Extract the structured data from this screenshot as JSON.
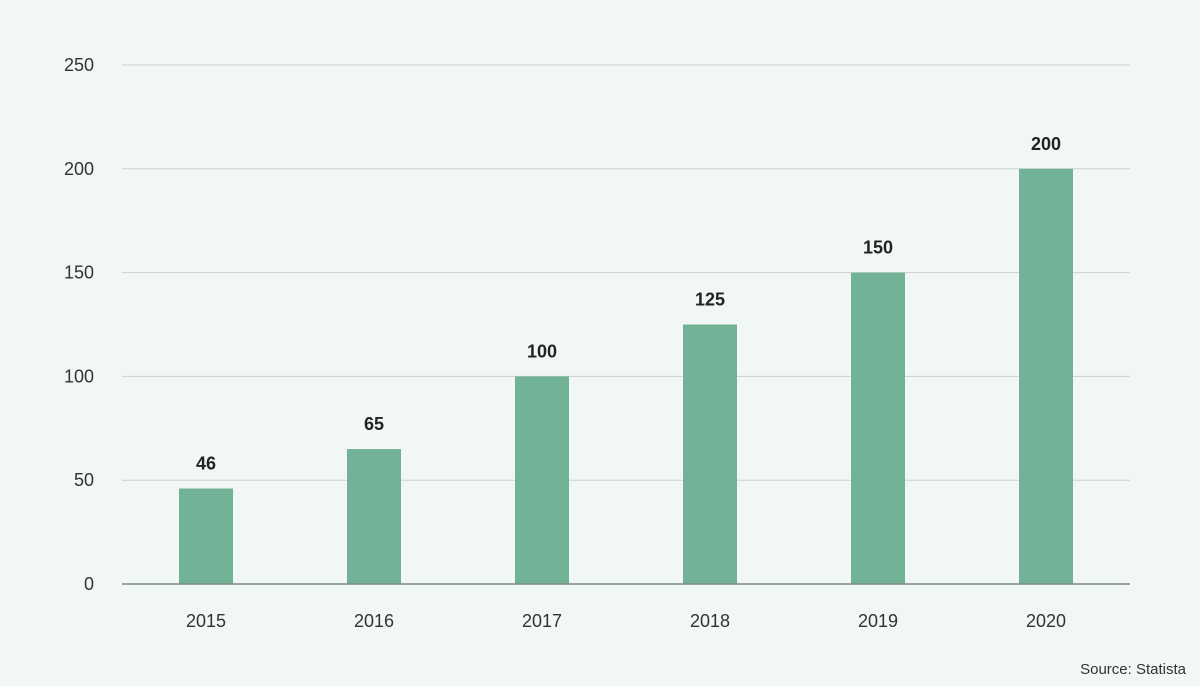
{
  "chart_data": {
    "type": "bar",
    "title": "",
    "xlabel": "",
    "ylabel": "",
    "categories": [
      "2015",
      "2016",
      "2017",
      "2018",
      "2019",
      "2020"
    ],
    "values": [
      46,
      65,
      100,
      125,
      150,
      200
    ],
    "ylim": [
      0,
      250
    ],
    "yticks": [
      0,
      50,
      100,
      150,
      200,
      250
    ],
    "grid": true,
    "bar_color": "#72b398",
    "data_labels": true
  },
  "footer": {
    "source": "Source: Statista"
  }
}
